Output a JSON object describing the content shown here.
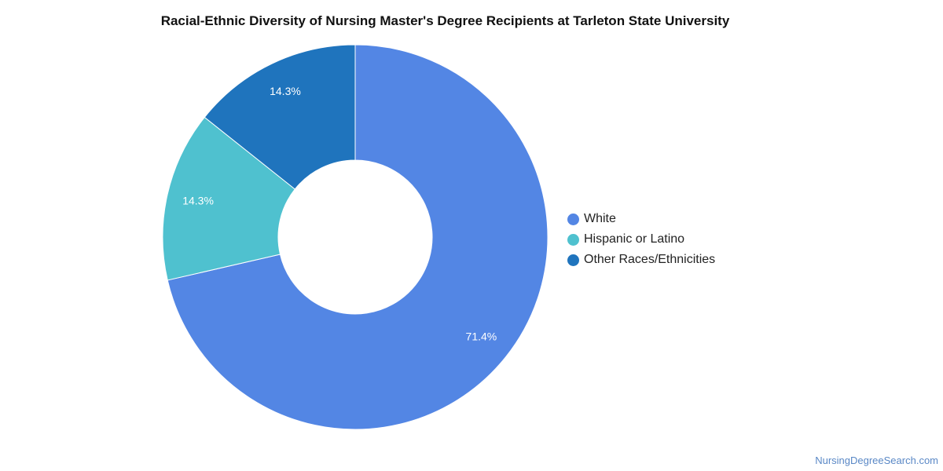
{
  "chart_data": {
    "type": "pie",
    "style": "donut",
    "title": "Racial-Ethnic Diversity of Nursing Master's Degree Recipients at Tarleton State University",
    "categories": [
      "White",
      "Hispanic or Latino",
      "Other Races/Ethnicities"
    ],
    "values": [
      71.4,
      14.3,
      14.3
    ],
    "labels": [
      "71.4%",
      "14.3%",
      "14.3%"
    ],
    "colors": [
      "#5386e4",
      "#4fc1cf",
      "#1f74bd"
    ],
    "legend_position": "right"
  },
  "legend": {
    "items": [
      {
        "label": "White",
        "color": "#5386e4"
      },
      {
        "label": "Hispanic or Latino",
        "color": "#4fc1cf"
      },
      {
        "label": "Other Races/Ethnicities",
        "color": "#1f74bd"
      }
    ]
  },
  "footer": {
    "source": "NursingDegreeSearch.com"
  }
}
